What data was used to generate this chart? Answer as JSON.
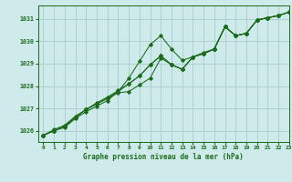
{
  "title": "Graphe pression niveau de la mer (hPa)",
  "bg_color": "#ceeaea",
  "grid_color": "#a8cccc",
  "line_color": "#1a6b1a",
  "xlim": [
    -0.5,
    23
  ],
  "ylim": [
    1025.5,
    1031.6
  ],
  "yticks": [
    1026,
    1027,
    1028,
    1029,
    1030,
    1031
  ],
  "xticks": [
    0,
    1,
    2,
    3,
    4,
    5,
    6,
    7,
    8,
    9,
    10,
    11,
    12,
    13,
    14,
    15,
    16,
    17,
    18,
    19,
    20,
    21,
    22,
    23
  ],
  "lines": [
    [
      1025.8,
      1026.0,
      1026.15,
      1026.55,
      1026.85,
      1027.1,
      1027.35,
      1027.75,
      1028.35,
      1029.1,
      1029.85,
      1030.25,
      1029.65,
      1029.15,
      1029.3,
      1029.45,
      1029.65,
      1030.65,
      1030.25,
      1030.35,
      1030.95,
      1031.05,
      1031.15,
      1031.3
    ],
    [
      1025.8,
      1026.0,
      1026.2,
      1026.6,
      1026.95,
      1027.2,
      1027.45,
      1027.7,
      1027.75,
      1028.05,
      1028.35,
      1029.25,
      1028.95,
      1028.75,
      1029.3,
      1029.45,
      1029.65,
      1030.65,
      1030.25,
      1030.35,
      1030.95,
      1031.05,
      1031.15,
      1031.3
    ],
    [
      1025.8,
      1026.0,
      1026.2,
      1026.6,
      1026.95,
      1027.2,
      1027.45,
      1027.75,
      1028.1,
      1028.45,
      1028.95,
      1029.35,
      1028.95,
      1028.75,
      1029.3,
      1029.45,
      1029.65,
      1030.65,
      1030.25,
      1030.35,
      1030.95,
      1031.05,
      1031.15,
      1031.3
    ],
    [
      1025.8,
      1026.05,
      1026.25,
      1026.65,
      1026.95,
      1027.25,
      1027.5,
      1027.8,
      1028.1,
      1028.45,
      1028.95,
      1029.35,
      1028.95,
      1028.75,
      1029.3,
      1029.5,
      1029.65,
      1030.65,
      1030.25,
      1030.35,
      1030.95,
      1031.05,
      1031.15,
      1031.3
    ]
  ]
}
